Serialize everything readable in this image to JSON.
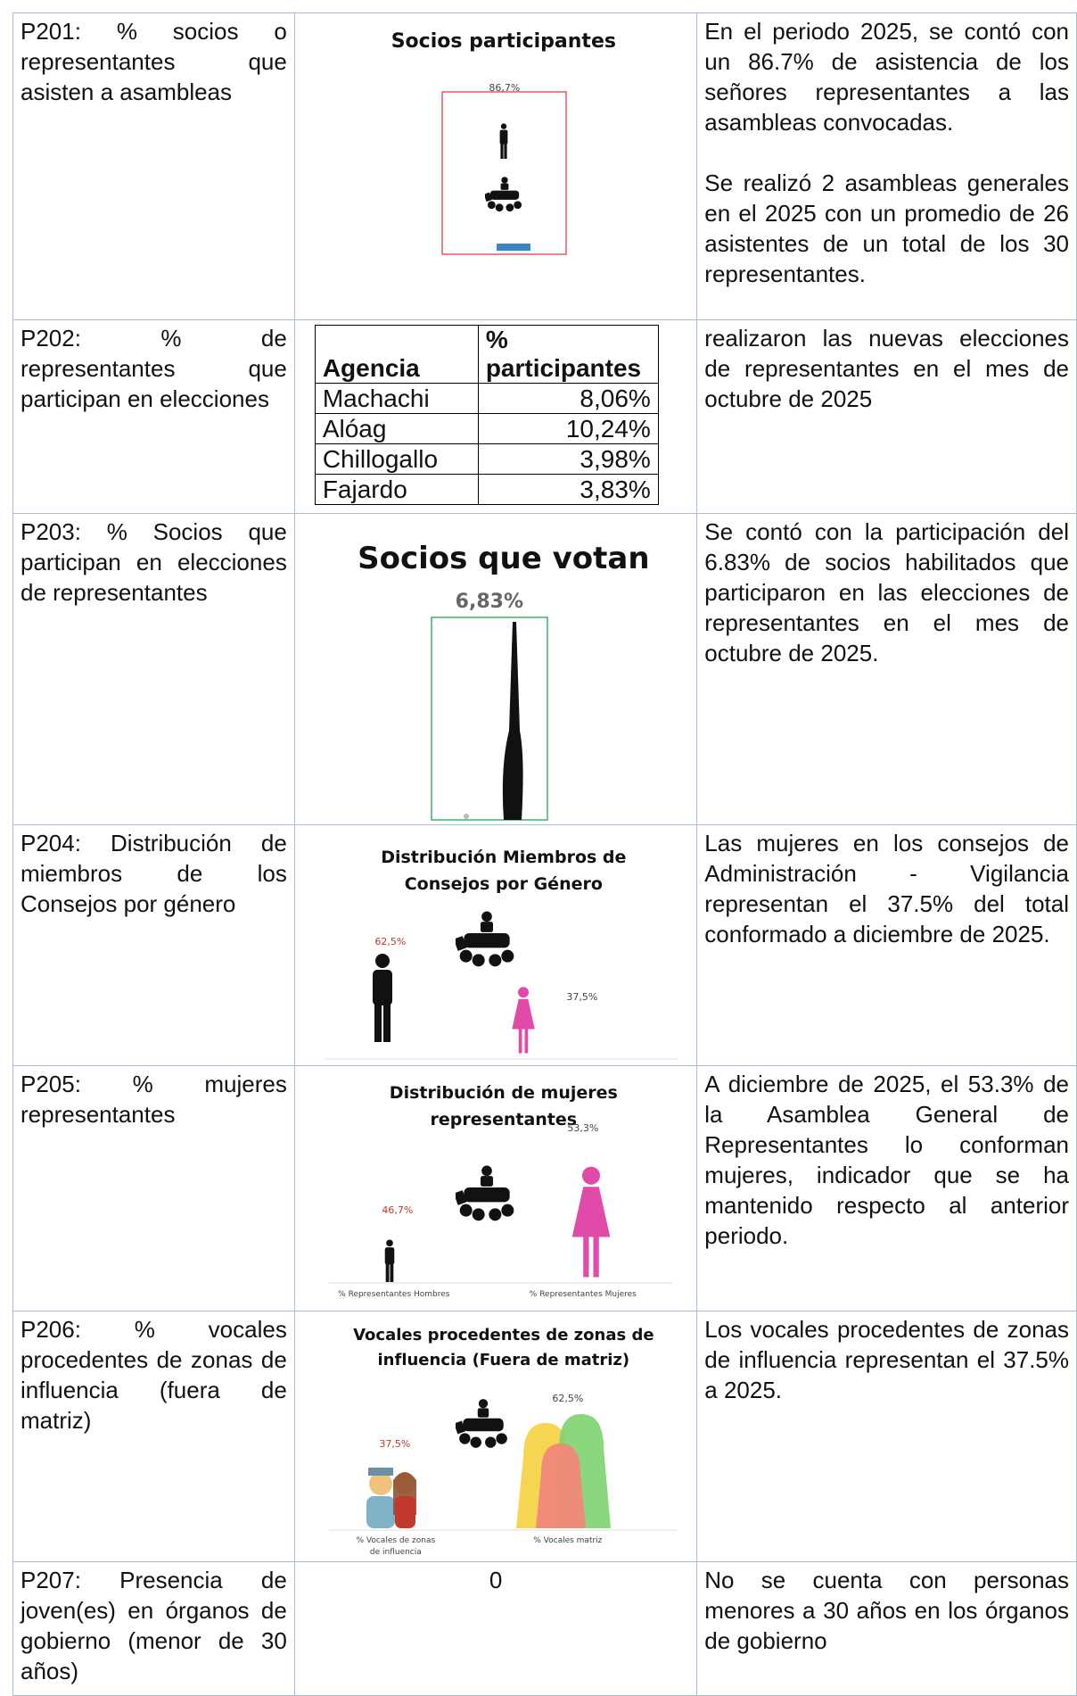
{
  "rows": [
    {
      "indicator": "P201: % socios o representantes que asisten a asambleas",
      "chart": {
        "title": "Socios participantes",
        "label": "86,7%"
      },
      "comment": [
        "En el periodo 2025, se contó con un 86.7% de asistencia de los señores representantes a las asambleas convocadas.",
        "Se realizó 2 asambleas generales en el 2025 con un promedio de 26 asistentes de un total de los 30 representantes."
      ]
    },
    {
      "indicator": "P202: % de representantes que participan en elecciones",
      "table": {
        "header": [
          "Agencia",
          "% participantes"
        ],
        "rows": [
          [
            "Machachi",
            "8,06%"
          ],
          [
            "Alóag",
            "10,24%"
          ],
          [
            "Chillogallo",
            "3,98%"
          ],
          [
            "Fajardo",
            "3,83%"
          ]
        ]
      },
      "comment": "realizaron las nuevas elecciones de representantes en el mes de octubre de 2025"
    },
    {
      "indicator": "P203: % Socios que participan en elecciones de representantes",
      "chart": {
        "title": "Socios que votan",
        "label": "6,83%"
      },
      "comment": "Se contó con la participación del 6.83% de socios habilitados que participaron en las elecciones de representantes en el mes de octubre de 2025."
    },
    {
      "indicator": "P204: Distribución de miembros de los Consejos por género",
      "chart": {
        "title": "Distribución Miembros de Consejos por Género",
        "labels": [
          "62,5%",
          "37,5%"
        ]
      },
      "comment": "Las mujeres en los consejos de Administración - Vigilancia representan el 37.5% del total conformado a diciembre de 2025."
    },
    {
      "indicator": "P205: % mujeres representantes",
      "chart": {
        "title": "Distribución de mujeres representantes",
        "labels": [
          "46,7%",
          "53,3%"
        ],
        "categories": [
          "% Representantes Hombres",
          "% Representantes Mujeres"
        ]
      },
      "comment": "A diciembre de 2025, el 53.3% de la Asamblea General de Representantes lo conforman mujeres, indicador que se ha mantenido respecto al anterior periodo."
    },
    {
      "indicator": "P206: % vocales procedentes de zonas de influencia (fuera de matriz)",
      "chart": {
        "title": "Vocales procedentes de zonas de influencia (Fuera de matriz)",
        "labels": [
          "37,5%",
          "62,5%"
        ],
        "categories": [
          "% Vocales de zonas de influencia",
          "% Vocales matriz"
        ]
      },
      "comment": "Los vocales procedentes de zonas de influencia representan el 37.5% a 2025."
    },
    {
      "indicator": "P207: Presencia de joven(es) en órganos de gobierno (menor de 30 años)",
      "value": "0",
      "comment": "No se cuenta con personas menores a 30 años en los órganos de gobierno"
    }
  ]
}
